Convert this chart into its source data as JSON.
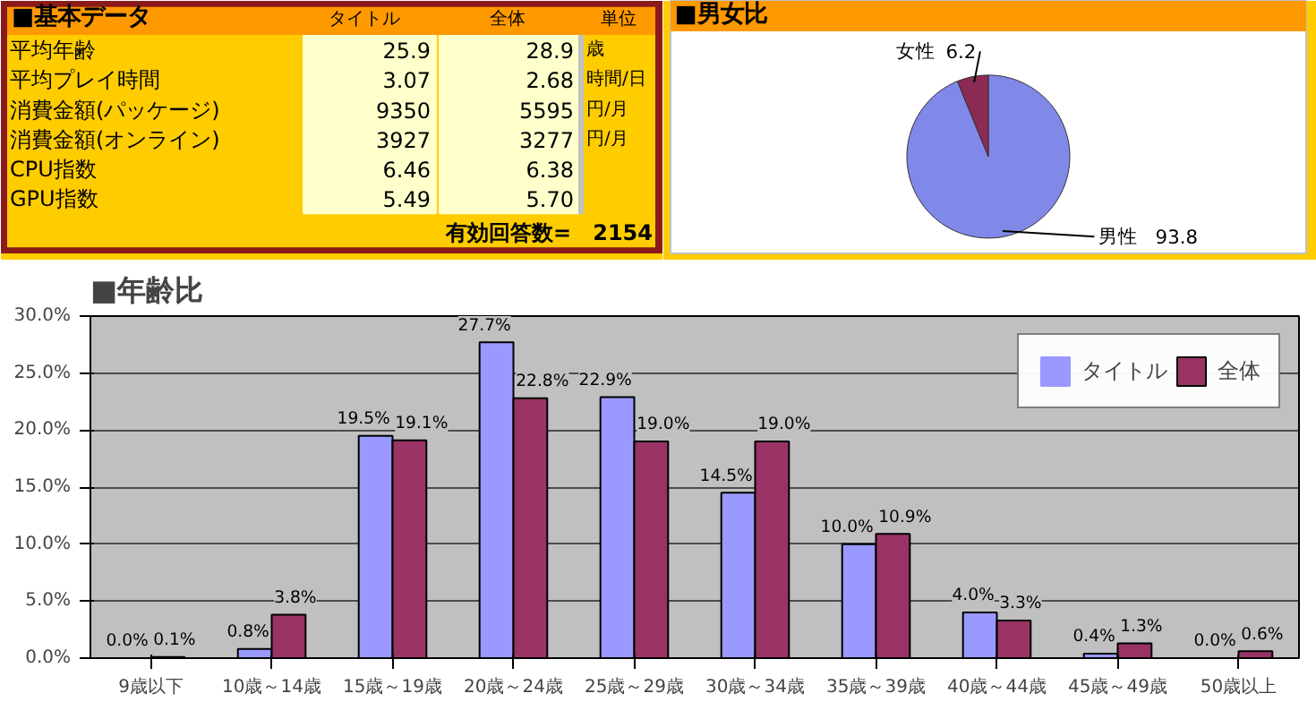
{
  "chart_data": [
    {
      "type": "other",
      "title": "■基本データ",
      "categories": [
        "タイトル",
        "全体",
        "単位"
      ],
      "y_categories": [
        "平均年齢",
        "平均プレイ時間",
        "消費金額(パッケージ)",
        "消費金額(オンライン)",
        "CPU指数",
        "GPU指数"
      ],
      "cell_labels": [
        [
          "25.9",
          "28.9",
          "歳"
        ],
        [
          "3.07",
          "2.68",
          "時間/日"
        ],
        [
          "9350",
          "5595",
          "円/月"
        ],
        [
          "3927",
          "3277",
          "円/月"
        ],
        [
          "6.46",
          "6.38",
          null
        ],
        [
          "5.49",
          "5.70",
          null
        ]
      ],
      "annotations": [
        "有効回答数=　2154"
      ]
    },
    {
      "type": "pie",
      "title": "■男女比",
      "categories": [
        "男性",
        "女性"
      ],
      "values": [
        93.8,
        6.2
      ],
      "colors": [
        "#8088e8",
        "#8b2a52"
      ],
      "data_labels": true
    },
    {
      "type": "bar",
      "title": "■年齢比",
      "categories": [
        "9歳以下",
        "10歳～14歳",
        "15歳～19歳",
        "20歳～24歳",
        "25歳～29歳",
        "30歳～34歳",
        "35歳～39歳",
        "40歳～44歳",
        "45歳～49歳",
        "50歳以上"
      ],
      "series": [
        {
          "name": "タイトル",
          "color": "#9999ff",
          "values": [
            0.0,
            0.8,
            19.5,
            27.7,
            22.9,
            14.5,
            10.0,
            4.0,
            0.4,
            0.0
          ],
          "value_labels": [
            "0.0%",
            "0.8%",
            "19.5%",
            "27.7%",
            "22.9%",
            "14.5%",
            "10.0%",
            "4.0%",
            "0.4%",
            "0.0%"
          ]
        },
        {
          "name": "全体",
          "color": "#993366",
          "values": [
            0.1,
            3.8,
            19.1,
            22.8,
            19.0,
            19.0,
            10.9,
            3.3,
            1.3,
            0.6
          ],
          "value_labels": [
            "0.1%",
            "3.8%",
            "19.1%",
            "22.8%",
            "19.0%",
            "19.0%",
            "10.9%",
            "3.3%",
            "1.3%",
            "0.6%"
          ]
        }
      ],
      "ylim": [
        0,
        30
      ],
      "yticks": [
        {
          "value": 0,
          "label": "0.0%"
        },
        {
          "value": 5,
          "label": "5.0%"
        },
        {
          "value": 10,
          "label": "10.0%"
        },
        {
          "value": 15,
          "label": "15.0%"
        },
        {
          "value": 20,
          "label": "20.0%"
        },
        {
          "value": 25,
          "label": "25.0%"
        },
        {
          "value": 30,
          "label": "30.0%"
        }
      ],
      "grid": "y",
      "legend": "top right"
    }
  ]
}
